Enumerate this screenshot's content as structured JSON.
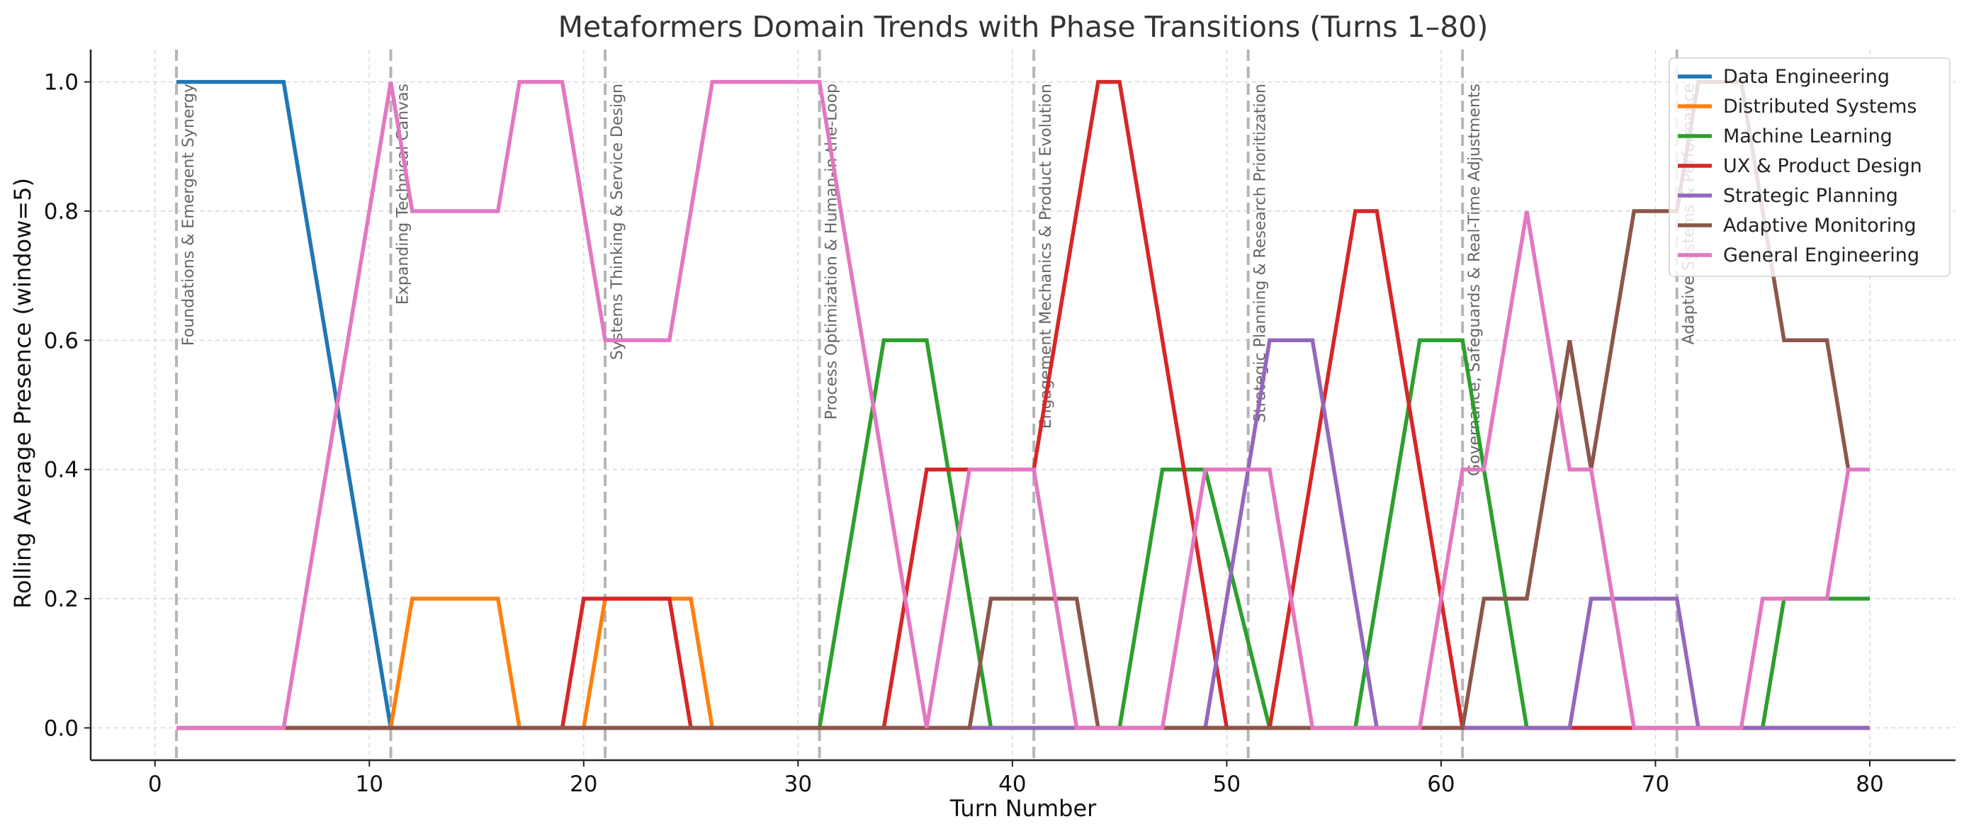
{
  "chart_data": {
    "type": "line",
    "title": "Metaformers Domain Trends with Phase Transitions (Turns 1–80)",
    "xlabel": "Turn Number",
    "ylabel": "Rolling Average Presence (window=5)",
    "xlim": [
      -3,
      84
    ],
    "ylim": [
      -0.05,
      1.05
    ],
    "xticks": [
      0,
      10,
      20,
      30,
      40,
      50,
      60,
      70,
      80
    ],
    "yticks": [
      0.0,
      0.2,
      0.4,
      0.6,
      0.8,
      1.0
    ],
    "xtick_labels": [
      "0",
      "10",
      "20",
      "30",
      "40",
      "50",
      "60",
      "70",
      "80"
    ],
    "ytick_labels": [
      "0.0",
      "0.2",
      "0.4",
      "0.6",
      "0.8",
      "1.0"
    ],
    "grid": true,
    "legend_position": "top-right",
    "phases": [
      {
        "x": 1,
        "label": "Foundations & Emergent Synergy"
      },
      {
        "x": 11,
        "label": "Expanding Technical Canvas"
      },
      {
        "x": 21,
        "label": "Systems Thinking & Service Design"
      },
      {
        "x": 31,
        "label": "Process Optimization & Human-in-the-Loop"
      },
      {
        "x": 41,
        "label": "Engagement Mechanics & Product Evolution"
      },
      {
        "x": 51,
        "label": "Strategic Planning & Research Prioritization"
      },
      {
        "x": 61,
        "label": "Governance, Safeguards & Real-Time Adjustments"
      },
      {
        "x": 71,
        "label": "Adaptive Systems & Performance"
      }
    ],
    "series": [
      {
        "name": "Data Engineering",
        "color": "#1f77b4",
        "points": [
          [
            1,
            1.0
          ],
          [
            6,
            1.0
          ],
          [
            11,
            0.0
          ],
          [
            80,
            0.0
          ]
        ]
      },
      {
        "name": "Distributed Systems",
        "color": "#ff7f0e",
        "points": [
          [
            1,
            0.0
          ],
          [
            11,
            0.0
          ],
          [
            12,
            0.2
          ],
          [
            16,
            0.2
          ],
          [
            17,
            0.0
          ],
          [
            20,
            0.0
          ],
          [
            21,
            0.2
          ],
          [
            25,
            0.2
          ],
          [
            26,
            0.0
          ],
          [
            80,
            0.0
          ]
        ]
      },
      {
        "name": "Machine Learning",
        "color": "#2ca02c",
        "points": [
          [
            1,
            0.0
          ],
          [
            31,
            0.0
          ],
          [
            34,
            0.6
          ],
          [
            36,
            0.6
          ],
          [
            39,
            0.0
          ],
          [
            45,
            0.0
          ],
          [
            47,
            0.4
          ],
          [
            49,
            0.4
          ],
          [
            52,
            0.0
          ],
          [
            56,
            0.0
          ],
          [
            59,
            0.6
          ],
          [
            61,
            0.6
          ],
          [
            64,
            0.0
          ],
          [
            75,
            0.0
          ],
          [
            76,
            0.2
          ],
          [
            80,
            0.2
          ]
        ]
      },
      {
        "name": "UX & Product Design",
        "color": "#d62728",
        "points": [
          [
            1,
            0.0
          ],
          [
            19,
            0.0
          ],
          [
            20,
            0.2
          ],
          [
            24,
            0.2
          ],
          [
            25,
            0.0
          ],
          [
            34,
            0.0
          ],
          [
            36,
            0.4
          ],
          [
            38,
            0.4
          ],
          [
            39,
            0.4
          ],
          [
            41,
            0.4
          ],
          [
            44,
            1.0
          ],
          [
            45,
            1.0
          ],
          [
            50,
            0.0
          ],
          [
            52,
            0.0
          ],
          [
            56,
            0.8
          ],
          [
            57,
            0.8
          ],
          [
            61,
            0.0
          ],
          [
            80,
            0.0
          ]
        ]
      },
      {
        "name": "Strategic Planning",
        "color": "#9467bd",
        "points": [
          [
            1,
            0.0
          ],
          [
            49,
            0.0
          ],
          [
            52,
            0.6
          ],
          [
            54,
            0.6
          ],
          [
            57,
            0.0
          ],
          [
            66,
            0.0
          ],
          [
            67,
            0.2
          ],
          [
            71,
            0.2
          ],
          [
            72,
            0.0
          ],
          [
            80,
            0.0
          ]
        ]
      },
      {
        "name": "Adaptive Monitoring",
        "color": "#8c564b",
        "points": [
          [
            1,
            0.0
          ],
          [
            38,
            0.0
          ],
          [
            39,
            0.2
          ],
          [
            43,
            0.2
          ],
          [
            44,
            0.0
          ],
          [
            61,
            0.0
          ],
          [
            62,
            0.2
          ],
          [
            64,
            0.2
          ],
          [
            66,
            0.6
          ],
          [
            67,
            0.4
          ],
          [
            69,
            0.8
          ],
          [
            71,
            0.8
          ],
          [
            72,
            1.0
          ],
          [
            74,
            1.0
          ],
          [
            76,
            0.6
          ],
          [
            78,
            0.6
          ],
          [
            79,
            0.4
          ],
          [
            80,
            0.4
          ]
        ]
      },
      {
        "name": "General Engineering",
        "color": "#e377c2",
        "points": [
          [
            1,
            0.0
          ],
          [
            6,
            0.0
          ],
          [
            11,
            1.0
          ],
          [
            12,
            0.8
          ],
          [
            16,
            0.8
          ],
          [
            17,
            1.0
          ],
          [
            19,
            1.0
          ],
          [
            21,
            0.6
          ],
          [
            24,
            0.6
          ],
          [
            26,
            1.0
          ],
          [
            31,
            1.0
          ],
          [
            36,
            0.0
          ],
          [
            38,
            0.4
          ],
          [
            41,
            0.4
          ],
          [
            43,
            0.0
          ],
          [
            47,
            0.0
          ],
          [
            49,
            0.4
          ],
          [
            52,
            0.4
          ],
          [
            54,
            0.0
          ],
          [
            59,
            0.0
          ],
          [
            61,
            0.4
          ],
          [
            62,
            0.4
          ],
          [
            64,
            0.8
          ],
          [
            66,
            0.4
          ],
          [
            67,
            0.4
          ],
          [
            69,
            0.0
          ],
          [
            74,
            0.0
          ],
          [
            75,
            0.2
          ],
          [
            78,
            0.2
          ],
          [
            79,
            0.4
          ],
          [
            80,
            0.4
          ]
        ]
      }
    ]
  }
}
